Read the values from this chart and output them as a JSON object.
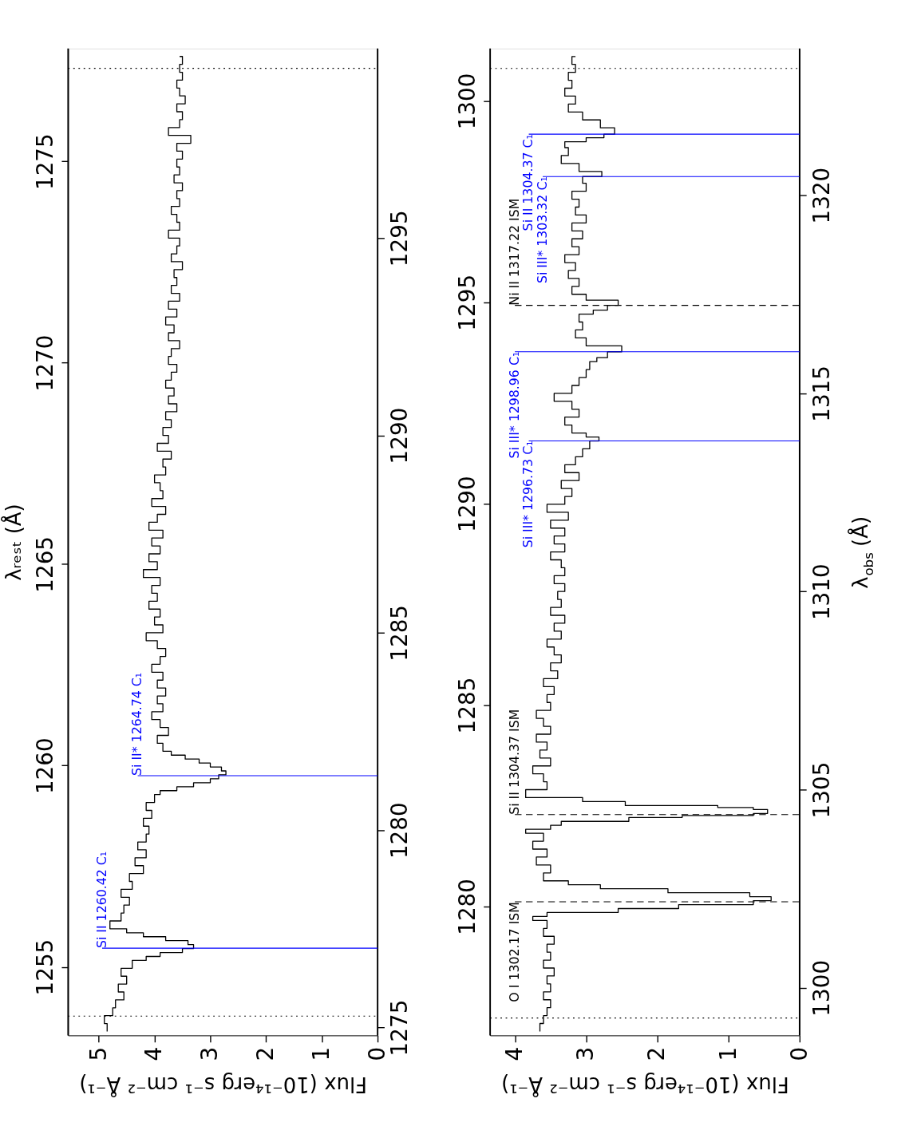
{
  "chart_data": [
    {
      "type": "step",
      "xlim": [
        5.55,
        0
      ],
      "xticks": [
        0,
        1,
        2,
        3,
        4,
        5
      ],
      "xlabel": "Flux (10⁻¹⁴erg s⁻¹ cm⁻² Å⁻¹)",
      "ylim": [
        1253.3,
        1277.8
      ],
      "yticks": [
        1255,
        1260,
        1265,
        1270,
        1275
      ],
      "ylabel": "λᵣₑₛₜ (Å)",
      "y2lim": [
        1274.8,
        1299.8
      ],
      "y2ticks": [
        1275,
        1280,
        1285,
        1290,
        1295
      ],
      "series": [
        {
          "color": "#000000",
          "axis": "y2",
          "x": [
            4.85,
            4.9,
            4.75,
            4.7,
            4.55,
            4.65,
            4.5,
            4.6,
            4.4,
            4.15,
            3.9,
            3.5,
            3.3,
            3.4,
            3.8,
            4.2,
            4.5,
            4.8,
            4.6,
            4.55,
            4.45,
            4.6,
            4.4,
            4.45,
            4.2,
            4.35,
            4.15,
            4.3,
            4.15,
            4.1,
            4.2,
            4.05,
            4.15,
            4.0,
            3.9,
            3.6,
            3.3,
            3.0,
            2.85,
            2.72,
            2.8,
            3.0,
            3.2,
            3.45,
            3.7,
            3.85,
            3.95,
            3.75,
            3.9,
            4.05,
            3.85,
            3.95,
            3.8,
            3.95,
            3.85,
            4.05,
            3.9,
            3.8,
            3.95,
            4.15,
            3.85,
            4.0,
            3.9,
            4.1,
            3.95,
            4.05,
            3.9,
            4.2,
            3.95,
            4.1,
            3.9,
            4.05,
            3.85,
            4.1,
            3.95,
            3.8,
            4.05,
            3.85,
            3.9,
            4.0,
            3.8,
            3.85,
            3.7,
            3.95,
            3.75,
            3.85,
            3.7,
            3.8,
            3.6,
            3.75,
            3.65,
            3.8,
            3.7,
            3.6,
            3.75,
            3.7,
            3.55,
            3.75,
            3.65,
            3.8,
            3.6,
            3.75,
            3.55,
            3.7,
            3.6,
            3.65,
            3.5,
            3.7,
            3.6,
            3.55,
            3.75,
            3.55,
            3.6,
            3.7,
            3.55,
            3.6,
            3.5,
            3.65,
            3.55,
            3.6,
            3.5,
            3.6,
            3.35,
            3.75,
            3.55,
            3.5,
            3.6,
            3.45,
            3.55,
            3.6,
            3.5,
            3.55,
            3.5,
            3.55
          ],
          "values": [
            1274.9,
            1275.1,
            1275.3,
            1275.5,
            1275.7,
            1275.9,
            1276.1,
            1276.3,
            1276.5,
            1276.7,
            1276.8,
            1276.9,
            1277.0,
            1277.1,
            1277.2,
            1277.3,
            1277.4,
            1277.5,
            1277.7,
            1277.9,
            1278.1,
            1278.3,
            1278.5,
            1278.7,
            1278.9,
            1279.1,
            1279.3,
            1279.5,
            1279.7,
            1279.9,
            1280.1,
            1280.3,
            1280.5,
            1280.7,
            1280.9,
            1281.0,
            1281.1,
            1281.2,
            1281.3,
            1281.4,
            1281.5,
            1281.6,
            1281.7,
            1281.8,
            1281.9,
            1282.0,
            1282.2,
            1282.4,
            1282.6,
            1282.8,
            1283.0,
            1283.2,
            1283.4,
            1283.6,
            1283.8,
            1284.0,
            1284.2,
            1284.4,
            1284.6,
            1284.8,
            1285.0,
            1285.2,
            1285.4,
            1285.6,
            1285.8,
            1286.0,
            1286.2,
            1286.4,
            1286.6,
            1286.8,
            1287.0,
            1287.2,
            1287.4,
            1287.6,
            1287.8,
            1288.0,
            1288.2,
            1288.4,
            1288.6,
            1288.8,
            1289.0,
            1289.2,
            1289.4,
            1289.6,
            1289.8,
            1290.0,
            1290.2,
            1290.4,
            1290.6,
            1290.8,
            1291.0,
            1291.2,
            1291.4,
            1291.6,
            1291.8,
            1292.0,
            1292.2,
            1292.4,
            1292.6,
            1292.8,
            1293.0,
            1293.2,
            1293.4,
            1293.6,
            1293.8,
            1294.0,
            1294.2,
            1294.4,
            1294.6,
            1294.8,
            1295.0,
            1295.2,
            1295.4,
            1295.6,
            1295.8,
            1296.0,
            1296.2,
            1296.4,
            1296.6,
            1296.8,
            1297.0,
            1297.2,
            1297.4,
            1297.6,
            1297.8,
            1298.0,
            1298.2,
            1298.4,
            1298.6,
            1298.8,
            1299.0,
            1299.2,
            1299.4,
            1299.6
          ]
        }
      ],
      "ref_lines": [
        {
          "axis": "y2",
          "value": 1299.3,
          "color": "#000000",
          "line_style": "dotted"
        },
        {
          "axis": "y2",
          "value": 1275.29,
          "color": "#000000",
          "line_style": "dotted"
        },
        {
          "axis": "y2",
          "value": 1277.01,
          "label": "Si II 1260.42 C₁",
          "color": "#0000ff",
          "line_style": "solid"
        },
        {
          "axis": "y2",
          "value": 1281.38,
          "label": "Si II* 1264.74 C₁",
          "color": "#0000ff",
          "line_style": "solid"
        }
      ]
    },
    {
      "type": "step",
      "xlim": [
        4.35,
        0
      ],
      "xticks": [
        0,
        1,
        2,
        3,
        4
      ],
      "xlabel": "Flux (10⁻¹⁴erg s⁻¹ cm⁻² Å⁻¹)",
      "ylim": [
        1276.8,
        1301.3
      ],
      "yticks": [
        1280,
        1285,
        1290,
        1295,
        1300
      ],
      "y2lim": [
        1298.8,
        1323.7
      ],
      "y2ticks": [
        1300,
        1305,
        1310,
        1315,
        1320
      ],
      "y2label": "λ$_{obs}$ (Å)",
      "series": [
        {
          "color": "#000000",
          "axis": "y2",
          "x": [
            3.65,
            3.6,
            3.55,
            3.5,
            3.6,
            3.5,
            3.55,
            3.45,
            3.6,
            3.5,
            3.55,
            3.45,
            3.6,
            3.55,
            3.75,
            3.55,
            2.55,
            1.7,
            0.65,
            0.4,
            0.7,
            1.85,
            2.8,
            3.25,
            3.6,
            3.5,
            3.7,
            3.55,
            3.75,
            3.6,
            3.85,
            3.5,
            3.35,
            2.4,
            1.65,
            0.65,
            0.45,
            0.65,
            1.15,
            2.45,
            3.05,
            3.85,
            3.55,
            3.6,
            3.75,
            3.5,
            3.65,
            3.55,
            3.7,
            3.5,
            3.6,
            3.7,
            3.5,
            3.55,
            3.45,
            3.6,
            3.4,
            3.5,
            3.35,
            3.45,
            3.55,
            3.35,
            3.45,
            3.3,
            3.5,
            3.35,
            3.4,
            3.3,
            3.45,
            3.3,
            3.35,
            3.5,
            3.3,
            3.45,
            3.3,
            3.5,
            3.25,
            3.55,
            3.3,
            3.2,
            3.35,
            3.1,
            3.3,
            3.15,
            3.05,
            2.95,
            2.82,
            3.0,
            3.2,
            3.3,
            3.1,
            3.2,
            3.45,
            3.2,
            3.1,
            3.0,
            2.95,
            2.85,
            2.7,
            2.5,
            3.0,
            3.15,
            3.05,
            3.1,
            2.9,
            2.7,
            2.55,
            3.0,
            3.2,
            3.1,
            3.25,
            3.15,
            3.3,
            3.1,
            3.2,
            3.05,
            3.2,
            3.0,
            3.15,
            3.1,
            3.2,
            3.0,
            3.05,
            2.78,
            3.1,
            3.35,
            3.25,
            3.3,
            3.0,
            2.75,
            2.6,
            2.8,
            3.05,
            3.25,
            3.15,
            3.3,
            3.2,
            3.25,
            3.15,
            3.2,
            3.15
          ],
          "values": [
            1298.9,
            1299.1,
            1299.3,
            1299.5,
            1299.7,
            1299.9,
            1300.1,
            1300.3,
            1300.5,
            1300.7,
            1300.9,
            1301.1,
            1301.3,
            1301.5,
            1301.7,
            1301.8,
            1301.9,
            1302.0,
            1302.1,
            1302.2,
            1302.3,
            1302.4,
            1302.5,
            1302.6,
            1302.7,
            1302.9,
            1303.1,
            1303.3,
            1303.5,
            1303.7,
            1303.9,
            1304.0,
            1304.1,
            1304.2,
            1304.3,
            1304.35,
            1304.4,
            1304.5,
            1304.55,
            1304.6,
            1304.7,
            1304.8,
            1305.0,
            1305.2,
            1305.4,
            1305.6,
            1305.8,
            1306.0,
            1306.2,
            1306.4,
            1306.6,
            1306.8,
            1307.0,
            1307.2,
            1307.4,
            1307.6,
            1307.8,
            1308.0,
            1308.2,
            1308.4,
            1308.6,
            1308.8,
            1309.0,
            1309.2,
            1309.4,
            1309.6,
            1309.8,
            1310.0,
            1310.2,
            1310.4,
            1310.6,
            1310.8,
            1311.0,
            1311.2,
            1311.4,
            1311.6,
            1311.8,
            1312.0,
            1312.2,
            1312.4,
            1312.6,
            1312.8,
            1313.0,
            1313.2,
            1313.4,
            1313.6,
            1313.8,
            1313.9,
            1314.0,
            1314.2,
            1314.4,
            1314.6,
            1314.8,
            1315.0,
            1315.2,
            1315.4,
            1315.6,
            1315.8,
            1315.9,
            1316.05,
            1316.2,
            1316.4,
            1316.6,
            1316.8,
            1317.0,
            1317.1,
            1317.22,
            1317.35,
            1317.5,
            1317.7,
            1317.9,
            1318.1,
            1318.3,
            1318.5,
            1318.7,
            1318.9,
            1319.1,
            1319.3,
            1319.5,
            1319.7,
            1319.9,
            1320.1,
            1320.3,
            1320.47,
            1320.6,
            1320.8,
            1321.0,
            1321.2,
            1321.35,
            1321.45,
            1321.54,
            1321.7,
            1321.9,
            1322.1,
            1322.3,
            1322.5,
            1322.7,
            1322.9,
            1323.1,
            1323.3,
            1323.5
          ]
        }
      ],
      "ref_lines": [
        {
          "axis": "y2",
          "value": 1323.2,
          "color": "#000000",
          "line_style": "dotted"
        },
        {
          "axis": "y2",
          "value": 1299.24,
          "color": "#000000",
          "line_style": "dotted"
        },
        {
          "axis": "y2",
          "value": 1302.17,
          "label": "O I 1302.17 ISM",
          "color": "#000000",
          "line_style": "dashed"
        },
        {
          "axis": "y2",
          "value": 1304.37,
          "label": "Si II 1304.37 ISM",
          "color": "#000000",
          "line_style": "dashed"
        },
        {
          "axis": "y2",
          "value": 1313.8,
          "label": "Si III* 1296.73 C₁",
          "color": "#0000ff",
          "line_style": "solid"
        },
        {
          "axis": "y2",
          "value": 1316.05,
          "label": "Si III* 1298.96 C₁",
          "color": "#0000ff",
          "line_style": "solid"
        },
        {
          "axis": "y2",
          "value": 1317.22,
          "label": "Ni II 1317.22 ISM",
          "color": "#000000",
          "line_style": "dashed"
        },
        {
          "axis": "y2",
          "value": 1320.47,
          "label": "Si III* 1303.32 C₁",
          "color": "#0000ff",
          "line_style": "solid"
        },
        {
          "axis": "y2",
          "value": 1321.54,
          "label": "Si II 1304.37 C₁",
          "color": "#0000ff",
          "line_style": "solid"
        }
      ]
    }
  ]
}
